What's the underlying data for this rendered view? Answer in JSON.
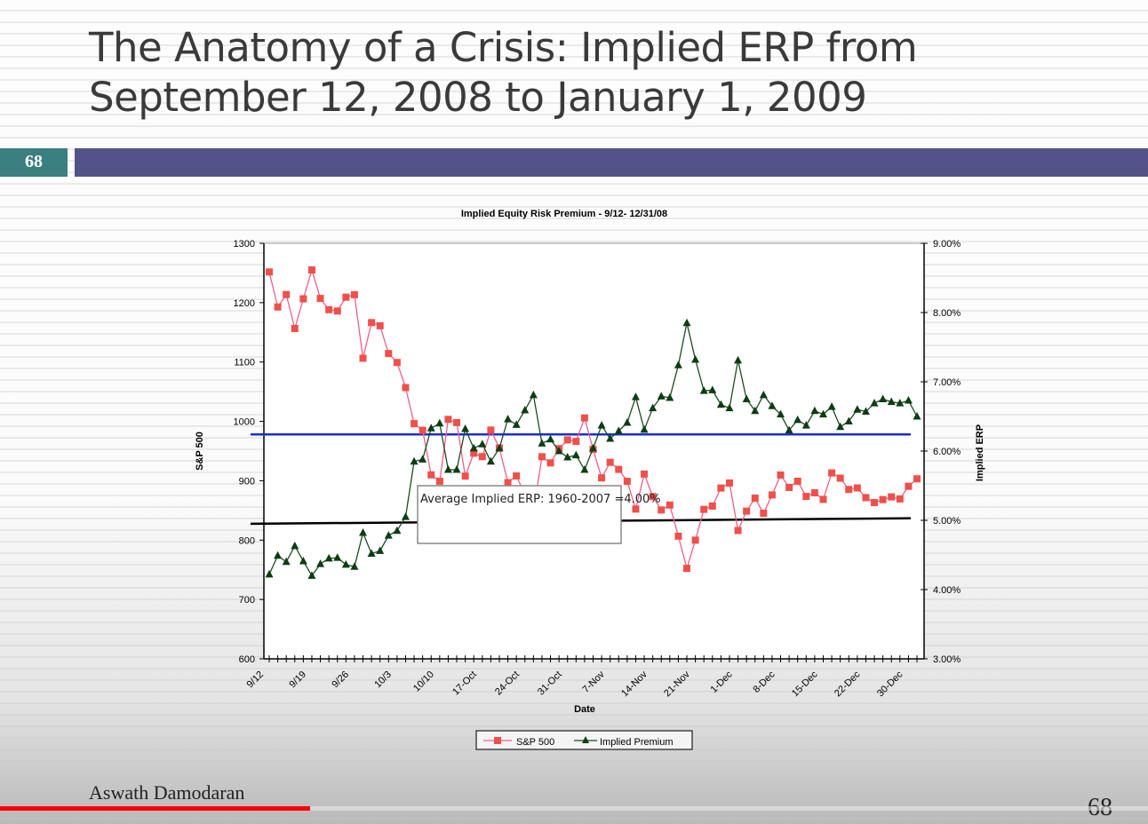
{
  "slide": {
    "title_line1": "The Anatomy of a Crisis: Implied ERP from",
    "title_line2": "September 12, 2008 to January 1, 2009",
    "slide_number_badge": "68",
    "author": "Aswath Damodaran",
    "page_number": "68",
    "band_color": "#525489",
    "badge_color": "#3b7f80"
  },
  "video": {
    "progress": 0.27,
    "progress_color": "#ff0000"
  },
  "chart_data": {
    "type": "line",
    "title": "Implied Equity Risk Premium - 9/12- 12/31/08",
    "xlabel": "Date",
    "ylabel_left": "S&P 500",
    "ylabel_right": "Implied ERP",
    "ylim_left": [
      600,
      1300
    ],
    "ylim_right": [
      3.0,
      9.0
    ],
    "yticks_left": [
      "600",
      "700",
      "800",
      "900",
      "1000",
      "1100",
      "1200",
      "1300"
    ],
    "yticks_right": [
      "3.00%",
      "4.00%",
      "5.00%",
      "6.00%",
      "7.00%",
      "8.00%",
      "9.00%"
    ],
    "xtick_labels": [
      "9/12",
      "9/19",
      "9/26",
      "10/3",
      "10/10",
      "17-Oct",
      "24-Oct",
      "31-Oct",
      "7-Nov",
      "14-Nov",
      "21-Nov",
      "1-Dec",
      "8-Dec",
      "15-Dec",
      "22-Dec",
      "30-Dec"
    ],
    "legend": {
      "placement": "bottom",
      "entries": [
        "S&P 500",
        "Implied Premium"
      ]
    },
    "annotation": "Average Implied ERP: 1960-2007 =4.00%",
    "reference_lines": [
      {
        "name": "blue-line",
        "axis": "right",
        "values": [
          6.24,
          6.24
        ],
        "color": "#1a2fd6"
      },
      {
        "name": "average-line",
        "axis": "right",
        "values": [
          4.95,
          5.03
        ],
        "color": "#000000"
      }
    ],
    "series": [
      {
        "name": "S&P 500",
        "axis": "left",
        "color": "#f0504a",
        "line_color": "#f06088",
        "values": [
          1251.7,
          1192.7,
          1213.6,
          1156.4,
          1206.5,
          1255.1,
          1207.1,
          1188.2,
          1185.9,
          1209.2,
          1213.3,
          1106.4,
          1166.4,
          1161.1,
          1114.3,
          1099.2,
          1056.9,
          996.2,
          984.9,
          909.9,
          899.2,
          1003.4,
          998.0,
          907.8,
          946.4,
          940.6,
          985.4,
          955.1,
          896.8,
          908.1,
          876.8,
          848.9,
          940.5,
          930.1,
          954.1,
          968.8,
          966.3,
          1005.8,
          952.8,
          904.9,
          931.0,
          919.2,
          899.0,
          852.3,
          911.3,
          873.3,
          850.8,
          859.1,
          806.6,
          752.4,
          800.0,
          851.8,
          857.4,
          887.7,
          896.2,
          816.2,
          848.8,
          870.7,
          845.2,
          876.1,
          909.7,
          888.7,
          899.2,
          873.6,
          879.7,
          868.6,
          913.2,
          904.4,
          885.3,
          887.9,
          871.6,
          863.2,
          868.2,
          872.8,
          869.4,
          890.6,
          903.3
        ]
      },
      {
        "name": "Implied Premium",
        "axis": "right",
        "color": "#0d3d12",
        "line_color": "#1f4a22",
        "values": [
          4.22,
          4.49,
          4.4,
          4.63,
          4.41,
          4.2,
          4.37,
          4.45,
          4.46,
          4.36,
          4.33,
          4.82,
          4.52,
          4.56,
          4.78,
          4.85,
          5.05,
          5.85,
          5.88,
          6.33,
          6.4,
          5.73,
          5.73,
          6.32,
          6.04,
          6.1,
          5.85,
          6.04,
          6.46,
          6.38,
          6.59,
          6.81,
          6.11,
          6.17,
          6.0,
          5.91,
          5.94,
          5.73,
          6.04,
          6.37,
          6.18,
          6.29,
          6.41,
          6.78,
          6.31,
          6.62,
          6.79,
          6.77,
          7.24,
          7.85,
          7.32,
          6.87,
          6.88,
          6.67,
          6.62,
          7.31,
          6.75,
          6.58,
          6.81,
          6.65,
          6.53,
          6.3,
          6.45,
          6.37,
          6.58,
          6.53,
          6.64,
          6.35,
          6.43,
          6.6,
          6.57,
          6.69,
          6.75,
          6.71,
          6.69,
          6.73,
          6.5
        ]
      }
    ]
  }
}
